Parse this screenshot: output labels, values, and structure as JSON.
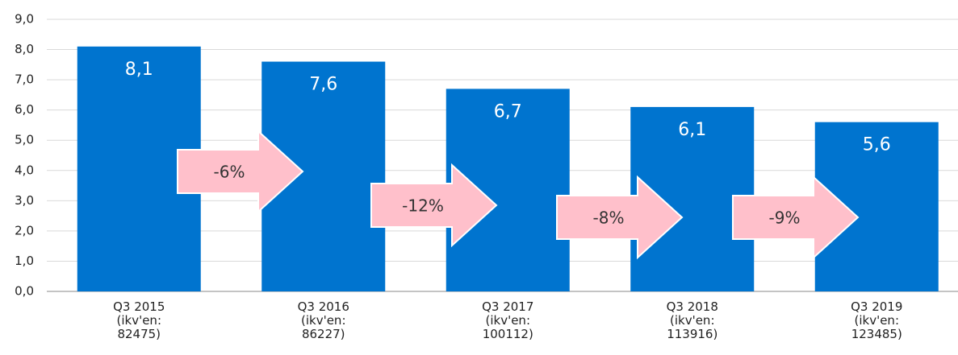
{
  "chart_data": {
    "type": "bar",
    "categories": [
      "Q3 2015 (ikv'en: 82475)",
      "Q3 2016 (ikv'en: 86227)",
      "Q3 2017 (ikv'en: 100112)",
      "Q3 2018 (ikv'en: 113916)",
      "Q3 2019 (ikv'en: 123485)"
    ],
    "values": [
      8.1,
      7.6,
      6.7,
      6.1,
      5.6
    ],
    "value_labels": [
      "8,1",
      "7,6",
      "6,7",
      "6,1",
      "5,6"
    ],
    "color": "#0074cf",
    "ylim": [
      0,
      9
    ],
    "yticks": [
      {
        "value": 0,
        "label": "0,0"
      },
      {
        "value": 1,
        "label": "1,0"
      },
      {
        "value": 2,
        "label": "2,0"
      },
      {
        "value": 3,
        "label": "3,0"
      },
      {
        "value": 4,
        "label": "4,0"
      },
      {
        "value": 5,
        "label": "5,0"
      },
      {
        "value": 6,
        "label": "6,0"
      },
      {
        "value": 7,
        "label": "7,0"
      },
      {
        "value": 8,
        "label": "8,0"
      },
      {
        "value": 9,
        "label": "9,0"
      }
    ],
    "grid": true,
    "annotations": [
      "-6%",
      "-12%",
      "-8%",
      "-9%"
    ]
  }
}
